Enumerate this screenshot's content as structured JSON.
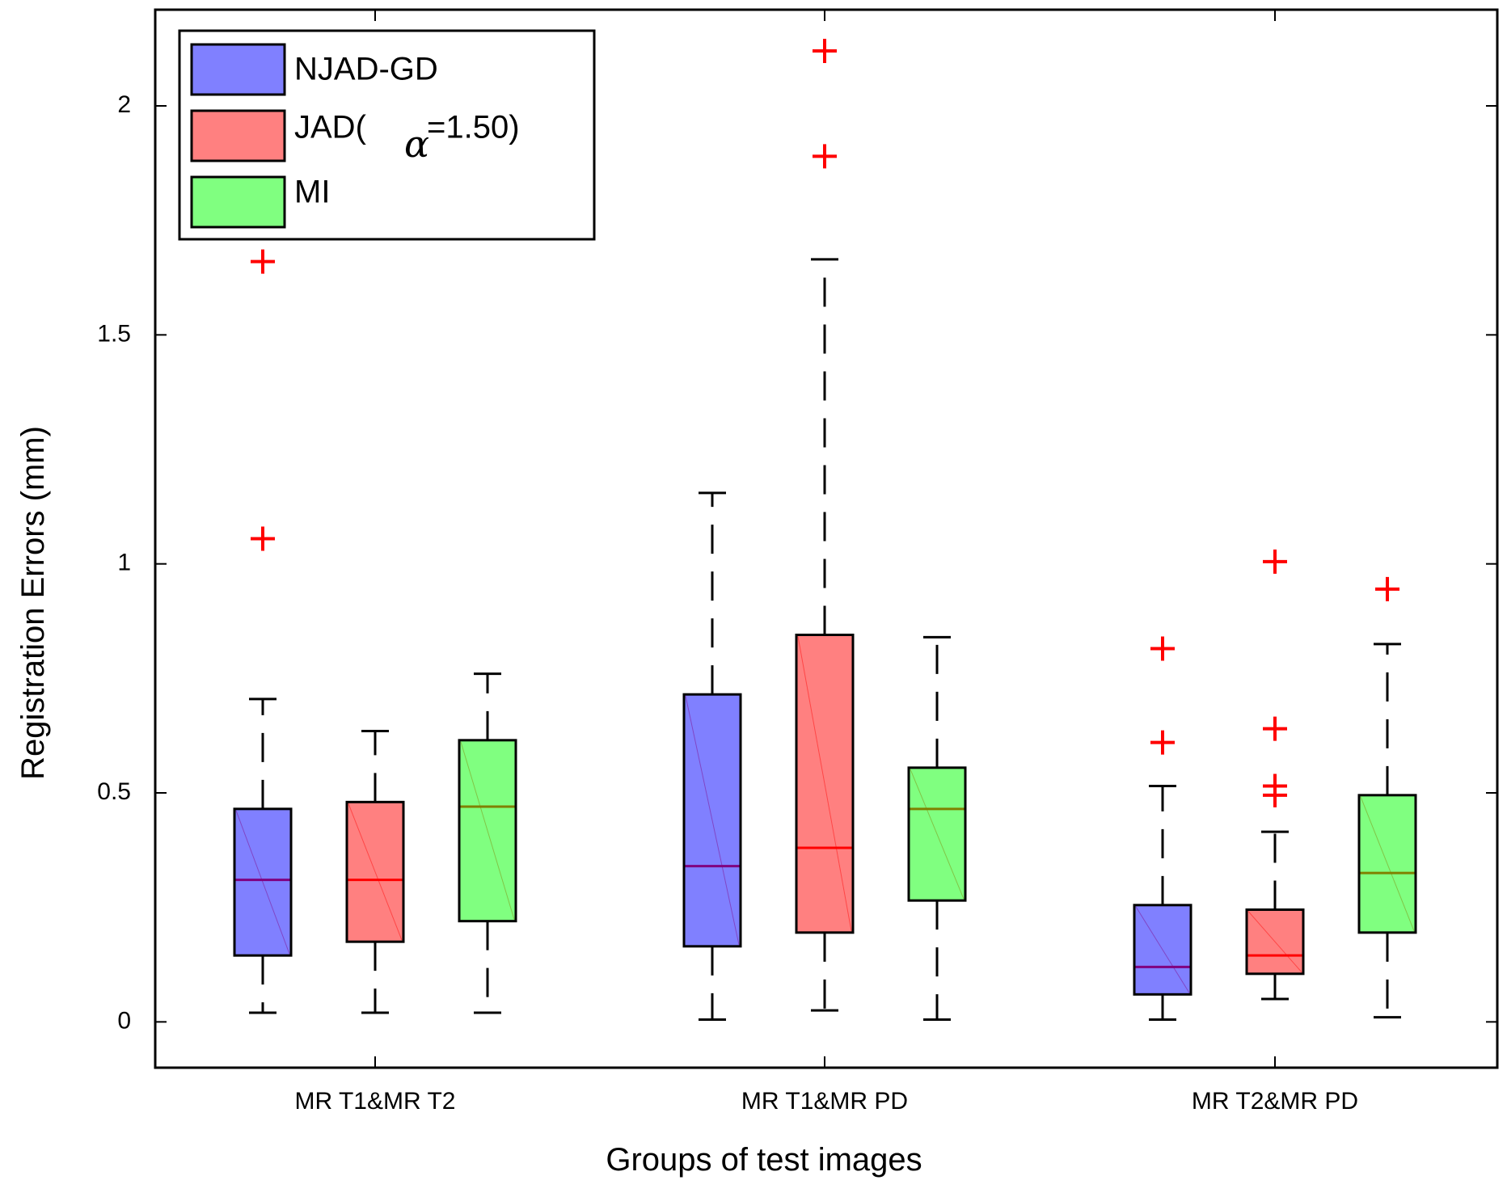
{
  "chart_data": {
    "type": "boxplot",
    "title": "",
    "xlabel": "Groups of test images",
    "ylabel": "Registration Errors (mm)",
    "ylim": [
      -0.1,
      2.21
    ],
    "yticks": [
      0,
      0.5,
      1,
      1.5,
      2
    ],
    "ytick_labels": [
      "0",
      "0.5",
      "1",
      "1.5",
      "2"
    ],
    "grid": false,
    "legend_position": "top-left",
    "legend": {
      "entries": [
        {
          "label": "NJAD-GD",
          "color": "#8080ff"
        },
        {
          "label": "JAD(",
          "symbol": "α",
          "suffix": "=1.50)",
          "color": "#ff8080"
        },
        {
          "label": "MI",
          "color": "#80ff80"
        }
      ]
    },
    "categories": [
      "MR T1&MR T2",
      "MR T1&MR PD",
      "MR T2&MR PD"
    ],
    "series": [
      {
        "name": "NJAD-GD",
        "color": "#8080ff",
        "median_color": "#800080",
        "boxes": [
          {
            "whisker_low": 0.02,
            "q1": 0.145,
            "median": 0.31,
            "q3": 0.465,
            "whisker_high": 0.705,
            "outliers": [
              1.055,
              1.66
            ]
          },
          {
            "whisker_low": 0.005,
            "q1": 0.165,
            "median": 0.34,
            "q3": 0.715,
            "whisker_high": 1.155,
            "outliers": []
          },
          {
            "whisker_low": 0.005,
            "q1": 0.06,
            "median": 0.12,
            "q3": 0.255,
            "whisker_high": 0.515,
            "outliers": [
              0.61,
              0.815
            ]
          }
        ]
      },
      {
        "name": "JAD(α=1.50)",
        "color": "#ff8080",
        "median_color": "#ff0000",
        "boxes": [
          {
            "whisker_low": 0.02,
            "q1": 0.175,
            "median": 0.31,
            "q3": 0.48,
            "whisker_high": 0.635,
            "outliers": []
          },
          {
            "whisker_low": 0.025,
            "q1": 0.195,
            "median": 0.38,
            "q3": 0.845,
            "whisker_high": 1.665,
            "outliers": [
              1.89,
              2.12
            ]
          },
          {
            "whisker_low": 0.05,
            "q1": 0.105,
            "median": 0.145,
            "q3": 0.245,
            "whisker_high": 0.415,
            "outliers": [
              0.495,
              0.515,
              0.64,
              1.005
            ]
          }
        ]
      },
      {
        "name": "MI",
        "color": "#80ff80",
        "median_color": "#808000",
        "boxes": [
          {
            "whisker_low": 0.02,
            "q1": 0.22,
            "median": 0.47,
            "q3": 0.615,
            "whisker_high": 0.76,
            "outliers": []
          },
          {
            "whisker_low": 0.005,
            "q1": 0.265,
            "median": 0.465,
            "q3": 0.555,
            "whisker_high": 0.84,
            "outliers": []
          },
          {
            "whisker_low": 0.01,
            "q1": 0.195,
            "median": 0.325,
            "q3": 0.495,
            "whisker_high": 0.825,
            "outliers": [
              0.945
            ]
          }
        ]
      }
    ],
    "outlier_color": "#ff0000"
  }
}
